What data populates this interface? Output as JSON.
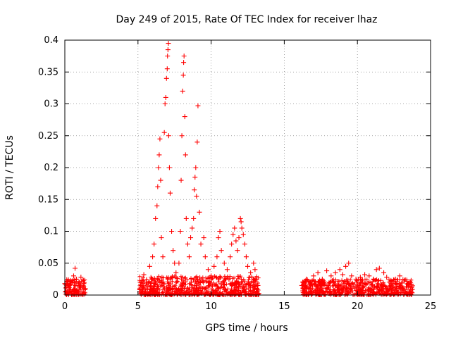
{
  "chart_data": {
    "type": "scatter",
    "title": "Day 249 of 2015, Rate Of TEC Index for receiver lhaz",
    "xlabel": "GPS time / hours",
    "ylabel": "ROTI / TECUs",
    "xlim": [
      0,
      25
    ],
    "ylim": [
      0,
      0.4
    ],
    "xticks": [
      0,
      5,
      10,
      15,
      20,
      25
    ],
    "yticks": [
      0,
      0.05,
      0.1,
      0.15,
      0.2,
      0.25,
      0.3,
      0.35,
      0.4
    ],
    "xtick_labels": [
      "0",
      "5",
      "10",
      "15",
      "20",
      "25"
    ],
    "ytick_labels": [
      "0",
      "0.05",
      "0.1",
      "0.15",
      "0.2",
      "0.25",
      "0.3",
      "0.35",
      "0.4"
    ],
    "grid": true,
    "marker_color": "#ff0000",
    "marker": "plus",
    "series": [
      {
        "points": [
          [
            0.0,
            0.018
          ],
          [
            0.1,
            0.012
          ],
          [
            0.2,
            0.022
          ],
          [
            0.3,
            0.015
          ],
          [
            0.4,
            0.008
          ],
          [
            0.5,
            0.02
          ],
          [
            0.6,
            0.03
          ],
          [
            0.7,
            0.042
          ],
          [
            0.8,
            0.025
          ],
          [
            0.9,
            0.015
          ],
          [
            1.0,
            0.02
          ],
          [
            1.1,
            0.028
          ],
          [
            1.2,
            0.012
          ],
          [
            1.3,
            0.018
          ],
          [
            1.4,
            0.01
          ],
          [
            5.2,
            0.015
          ],
          [
            5.4,
            0.032
          ],
          [
            5.6,
            0.02
          ],
          [
            5.8,
            0.045
          ],
          [
            6.0,
            0.06
          ],
          [
            6.1,
            0.08
          ],
          [
            6.2,
            0.12
          ],
          [
            6.3,
            0.14
          ],
          [
            6.35,
            0.17
          ],
          [
            6.4,
            0.2
          ],
          [
            6.45,
            0.22
          ],
          [
            6.5,
            0.245
          ],
          [
            6.55,
            0.18
          ],
          [
            6.6,
            0.09
          ],
          [
            6.7,
            0.06
          ],
          [
            6.8,
            0.255
          ],
          [
            6.85,
            0.3
          ],
          [
            6.9,
            0.31
          ],
          [
            6.95,
            0.34
          ],
          [
            7.0,
            0.355
          ],
          [
            7.02,
            0.375
          ],
          [
            7.05,
            0.385
          ],
          [
            7.08,
            0.395
          ],
          [
            7.1,
            0.25
          ],
          [
            7.15,
            0.2
          ],
          [
            7.2,
            0.16
          ],
          [
            7.3,
            0.1
          ],
          [
            7.4,
            0.07
          ],
          [
            7.5,
            0.05
          ],
          [
            7.6,
            0.035
          ],
          [
            7.8,
            0.05
          ],
          [
            7.9,
            0.1
          ],
          [
            7.95,
            0.18
          ],
          [
            8.0,
            0.25
          ],
          [
            8.05,
            0.32
          ],
          [
            8.1,
            0.345
          ],
          [
            8.12,
            0.365
          ],
          [
            8.15,
            0.375
          ],
          [
            8.2,
            0.28
          ],
          [
            8.25,
            0.22
          ],
          [
            8.3,
            0.12
          ],
          [
            8.4,
            0.08
          ],
          [
            8.5,
            0.06
          ],
          [
            8.6,
            0.09
          ],
          [
            8.7,
            0.105
          ],
          [
            8.8,
            0.12
          ],
          [
            8.85,
            0.165
          ],
          [
            8.9,
            0.185
          ],
          [
            8.95,
            0.2
          ],
          [
            9.0,
            0.155
          ],
          [
            9.05,
            0.24
          ],
          [
            9.1,
            0.297
          ],
          [
            9.2,
            0.13
          ],
          [
            9.3,
            0.08
          ],
          [
            9.5,
            0.09
          ],
          [
            9.6,
            0.06
          ],
          [
            9.8,
            0.04
          ],
          [
            10.0,
            0.03
          ],
          [
            10.2,
            0.045
          ],
          [
            10.4,
            0.06
          ],
          [
            10.5,
            0.09
          ],
          [
            10.6,
            0.1
          ],
          [
            10.7,
            0.07
          ],
          [
            10.9,
            0.05
          ],
          [
            11.1,
            0.04
          ],
          [
            11.3,
            0.06
          ],
          [
            11.4,
            0.08
          ],
          [
            11.5,
            0.095
          ],
          [
            11.6,
            0.105
          ],
          [
            11.7,
            0.085
          ],
          [
            11.8,
            0.07
          ],
          [
            11.9,
            0.09
          ],
          [
            12.0,
            0.12
          ],
          [
            12.05,
            0.115
          ],
          [
            12.1,
            0.105
          ],
          [
            12.2,
            0.095
          ],
          [
            12.3,
            0.08
          ],
          [
            12.4,
            0.06
          ],
          [
            12.5,
            0.045
          ],
          [
            12.7,
            0.035
          ],
          [
            12.9,
            0.05
          ],
          [
            13.0,
            0.04
          ],
          [
            13.1,
            0.025
          ],
          [
            13.2,
            0.015
          ],
          [
            16.2,
            0.015
          ],
          [
            16.5,
            0.025
          ],
          [
            16.8,
            0.02
          ],
          [
            17.0,
            0.03
          ],
          [
            17.3,
            0.035
          ],
          [
            17.6,
            0.025
          ],
          [
            17.9,
            0.038
          ],
          [
            18.2,
            0.03
          ],
          [
            18.5,
            0.035
          ],
          [
            18.8,
            0.04
          ],
          [
            19.0,
            0.032
          ],
          [
            19.2,
            0.045
          ],
          [
            19.4,
            0.05
          ],
          [
            19.6,
            0.03
          ],
          [
            19.9,
            0.025
          ],
          [
            20.2,
            0.028
          ],
          [
            20.5,
            0.032
          ],
          [
            20.8,
            0.03
          ],
          [
            21.1,
            0.025
          ],
          [
            21.3,
            0.04
          ],
          [
            21.5,
            0.042
          ],
          [
            21.8,
            0.035
          ],
          [
            22.0,
            0.028
          ],
          [
            22.3,
            0.02
          ],
          [
            22.6,
            0.025
          ],
          [
            22.9,
            0.03
          ],
          [
            23.2,
            0.022
          ],
          [
            23.5,
            0.018
          ],
          [
            23.7,
            0.012
          ]
        ]
      }
    ],
    "bands": [
      {
        "x_start": 0.0,
        "x_end": 1.45,
        "y_min": 0.0,
        "y_max": 0.025
      },
      {
        "x_start": 5.1,
        "x_end": 13.3,
        "y_min": 0.0,
        "y_max": 0.03
      },
      {
        "x_start": 16.2,
        "x_end": 23.8,
        "y_min": 0.0,
        "y_max": 0.025
      }
    ]
  }
}
